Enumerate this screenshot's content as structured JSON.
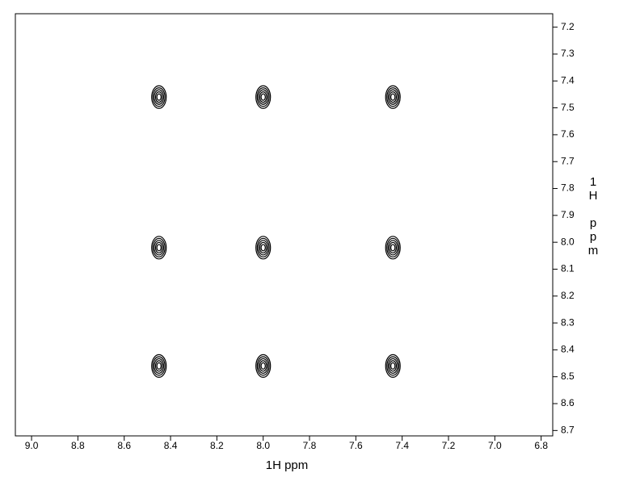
{
  "chart_data": {
    "type": "scatter",
    "x_label": "1H ppm",
    "y_label": "1H ppm",
    "x": [
      8.45,
      8.0,
      7.44,
      8.45,
      8.0,
      7.44,
      8.45,
      8.0,
      7.44
    ],
    "values": [
      7.46,
      7.46,
      7.46,
      8.02,
      8.02,
      8.02,
      8.46,
      8.46,
      8.46
    ],
    "color": "#000000",
    "xlim": [
      9.07,
      6.75
    ],
    "xticks": [
      {
        "value": 9,
        "label": "9.0"
      },
      8.8,
      8.6,
      8.4,
      8.2,
      {
        "value": 8,
        "label": "8.0"
      },
      7.8,
      7.6,
      7.4,
      7.2,
      {
        "value": 7,
        "label": "7.0"
      },
      6.8
    ],
    "ylim": [
      7.15,
      8.72
    ],
    "yticks": [
      7.2,
      7.3,
      7.4,
      7.5,
      7.6,
      7.7,
      7.8,
      7.9,
      {
        "value": 8,
        "label": "8.0"
      },
      8.1,
      8.2,
      8.3,
      8.4,
      8.5,
      8.6,
      8.7
    ]
  }
}
